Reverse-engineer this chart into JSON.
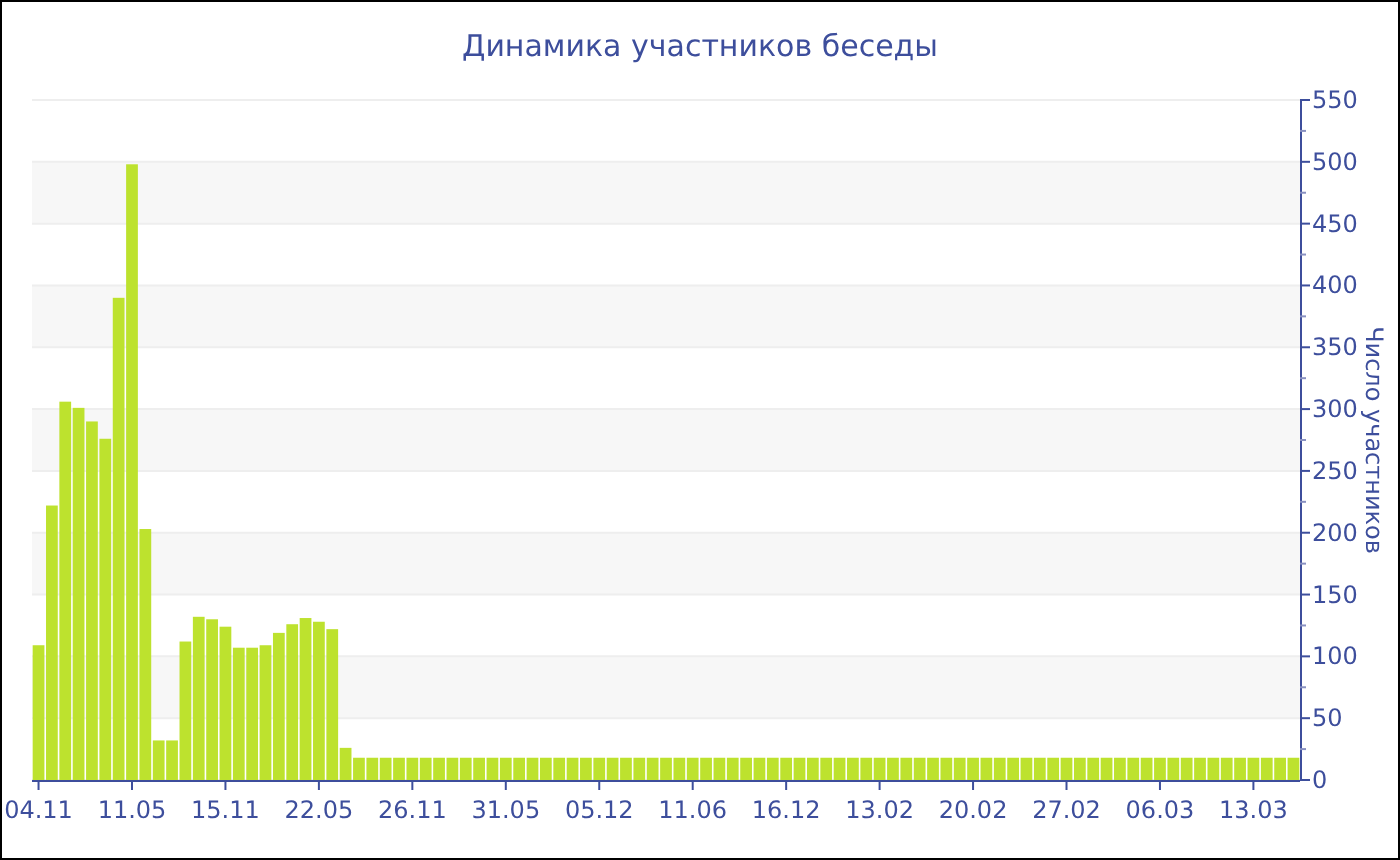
{
  "chart_data": {
    "type": "bar",
    "title": "Динамика участников беседы",
    "y2label": "Число участников",
    "categories": [
      "04.11",
      null,
      null,
      null,
      null,
      null,
      null,
      "11.05",
      null,
      null,
      null,
      null,
      null,
      null,
      "15.11",
      null,
      null,
      null,
      null,
      null,
      null,
      "22.05",
      null,
      null,
      null,
      null,
      null,
      null,
      "26.11",
      null,
      null,
      null,
      null,
      null,
      null,
      "31.05",
      null,
      null,
      null,
      null,
      null,
      null,
      "05.12",
      null,
      null,
      null,
      null,
      null,
      null,
      "11.06",
      null,
      null,
      null,
      null,
      null,
      null,
      "16.12",
      null,
      null,
      null,
      null,
      null,
      null,
      "13.02",
      null,
      null,
      null,
      null,
      null,
      null,
      "20.02",
      null,
      null,
      null,
      null,
      null,
      null,
      "27.02",
      null,
      null,
      null,
      null,
      null,
      null,
      "06.03",
      null,
      null,
      null,
      null,
      null,
      null,
      "13.03",
      null,
      null,
      null
    ],
    "series": [
      {
        "color": "#bde22e",
        "axis": "y2",
        "values": [
          109,
          222,
          306,
          301,
          290,
          276,
          390,
          498,
          203,
          32,
          32,
          112,
          132,
          130,
          124,
          107,
          107,
          109,
          119,
          126,
          131,
          128,
          122,
          26,
          18,
          18,
          18,
          18,
          18,
          18,
          18,
          18,
          18,
          18,
          18,
          18,
          18,
          18,
          18,
          18,
          18,
          18,
          18,
          18,
          18,
          18,
          18,
          18,
          18,
          18,
          18,
          18,
          18,
          18,
          18,
          18,
          18,
          18,
          18,
          18,
          18,
          18,
          18,
          18,
          18,
          18,
          18,
          18,
          18,
          18,
          18,
          18,
          18,
          18,
          18,
          18,
          18,
          18,
          18,
          18,
          18,
          18,
          18,
          18,
          18,
          18,
          18,
          18,
          18,
          18,
          18,
          18,
          18,
          18,
          18
        ]
      }
    ],
    "y2lim": [
      0,
      550
    ],
    "y2ticks": [
      0,
      50,
      100,
      150,
      200,
      250,
      300,
      350,
      400,
      450,
      500,
      550
    ],
    "grid": "y"
  }
}
